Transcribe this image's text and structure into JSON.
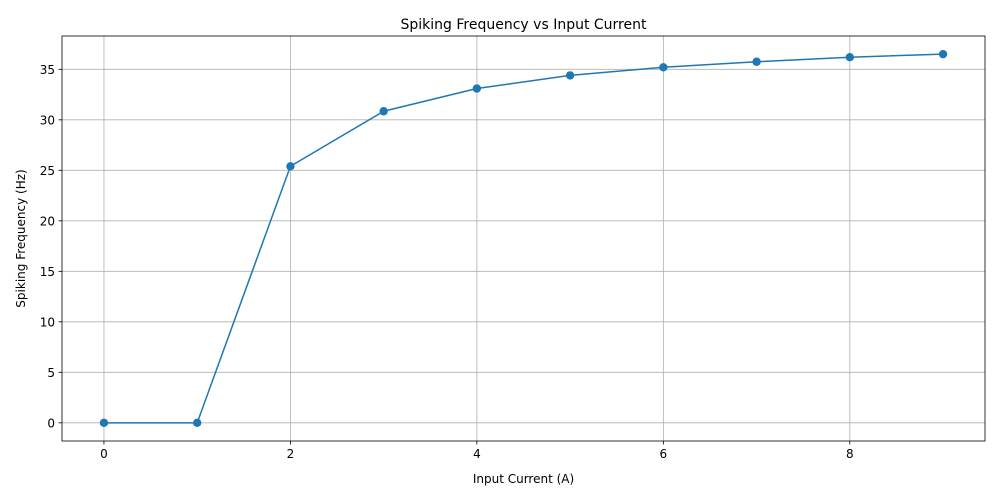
{
  "chart_data": {
    "type": "line",
    "title": "Spiking Frequency vs Input Current",
    "xlabel": "Input Current (A)",
    "ylabel": "Spiking Frequency (Hz)",
    "x": [
      0,
      1,
      2,
      3,
      4,
      5,
      6,
      7,
      8,
      9
    ],
    "series": [
      {
        "values": [
          0,
          0,
          25.4,
          30.85,
          33.1,
          34.4,
          35.2,
          35.75,
          36.2,
          36.5
        ],
        "color": "#1f77b4",
        "marker": "circle"
      }
    ],
    "xlim": [
      -0.45,
      9.45
    ],
    "ylim": [
      -1.8,
      38.3
    ],
    "xticks": [
      0,
      2,
      4,
      6,
      8
    ],
    "yticks": [
      0,
      5,
      10,
      15,
      20,
      25,
      30,
      35
    ],
    "grid": true
  }
}
